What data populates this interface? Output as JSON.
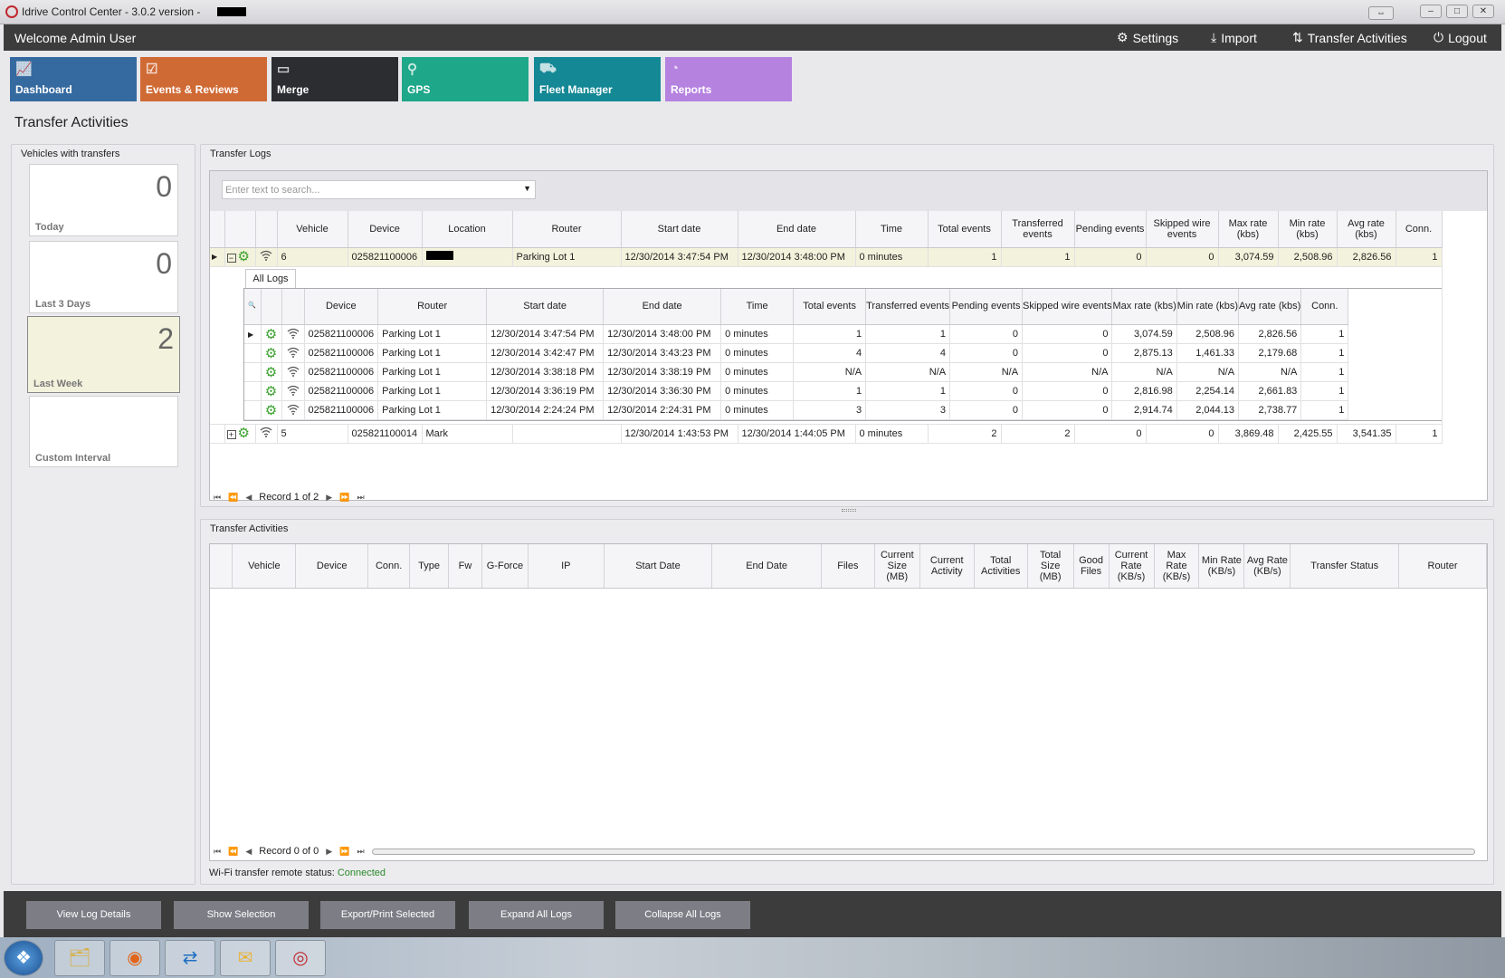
{
  "window": {
    "title": "Idrive Control Center - 3.0.2 version -",
    "buttons": [
      "⇔",
      "–",
      "□",
      "✕"
    ]
  },
  "header": {
    "welcome": "Welcome Admin User",
    "nav": [
      {
        "label": "Settings",
        "icon": "gears-icon"
      },
      {
        "label": "Import",
        "icon": "download-icon"
      },
      {
        "label": "Transfer Activities",
        "icon": "transfer-icon"
      },
      {
        "label": "Logout",
        "icon": "power-icon"
      }
    ]
  },
  "tiles": [
    {
      "label": "Dashboard",
      "color": "#356aa0",
      "icon": "chart-icon"
    },
    {
      "label": "Events & Reviews",
      "color": "#d06a35",
      "icon": "clipboard-icon"
    },
    {
      "label": "Merge",
      "color": "#2b2d31",
      "icon": "merge-icon"
    },
    {
      "label": "GPS",
      "color": "#1fa78a",
      "icon": "map-pin-icon"
    },
    {
      "label": "Fleet Manager",
      "color": "#148895",
      "icon": "cars-icon"
    },
    {
      "label": "Reports",
      "color": "#b582e0",
      "icon": "pie-chart-icon"
    }
  ],
  "page_title": "Transfer Activities",
  "vehicles_panel": {
    "title": "Vehicles with transfers",
    "cards": [
      {
        "label": "Today",
        "count": "0"
      },
      {
        "label": "Last 3 Days",
        "count": "0"
      },
      {
        "label": "Last Week",
        "count": "2",
        "selected": true
      },
      {
        "label": "Custom Interval",
        "count": ""
      }
    ]
  },
  "transfer_logs": {
    "title": "Transfer Logs",
    "search_placeholder": "Enter text to search...",
    "columns": [
      "",
      "",
      "",
      "Vehicle",
      "Device",
      "Location",
      "Router",
      "Start date",
      "End date",
      "Time",
      "Total events",
      "Transferred events",
      "Pending events",
      "Skipped wire events",
      "Max rate (kbs)",
      "Min rate (kbs)",
      "Avg rate (kbs)",
      "Conn."
    ],
    "rows": [
      {
        "expanded": true,
        "vehicle": "6",
        "device": "025821100006",
        "location": "",
        "router": "Parking Lot 1",
        "start": "12/30/2014 3:47:54 PM",
        "end": "12/30/2014 3:48:00 PM",
        "time": "0 minutes",
        "total": "1",
        "transferred": "1",
        "pending": "0",
        "skipped": "0",
        "max": "3,074.59",
        "min": "2,508.96",
        "avg": "2,826.56",
        "conn": "1",
        "detail": {
          "tab": "All Logs",
          "columns": [
            "",
            "",
            "",
            "Device",
            "Router",
            "Start date",
            "End date",
            "Time",
            "Total events",
            "Transferred events",
            "Pending events",
            "Skipped wire events",
            "Max rate (kbs)",
            "Min rate (kbs)",
            "Avg rate (kbs)",
            "Conn."
          ],
          "rows": [
            [
              "025821100006",
              "Parking Lot 1",
              "12/30/2014 3:47:54 PM",
              "12/30/2014 3:48:00 PM",
              "0 minutes",
              "1",
              "1",
              "0",
              "0",
              "3,074.59",
              "2,508.96",
              "2,826.56",
              "1"
            ],
            [
              "025821100006",
              "Parking Lot 1",
              "12/30/2014 3:42:47 PM",
              "12/30/2014 3:43:23 PM",
              "0 minutes",
              "4",
              "4",
              "0",
              "0",
              "2,875.13",
              "1,461.33",
              "2,179.68",
              "1"
            ],
            [
              "025821100006",
              "Parking Lot 1",
              "12/30/2014 3:38:18 PM",
              "12/30/2014 3:38:19 PM",
              "0 minutes",
              "N/A",
              "N/A",
              "N/A",
              "N/A",
              "N/A",
              "N/A",
              "N/A",
              "1"
            ],
            [
              "025821100006",
              "Parking Lot 1",
              "12/30/2014 3:36:19 PM",
              "12/30/2014 3:36:30 PM",
              "0 minutes",
              "1",
              "1",
              "0",
              "0",
              "2,816.98",
              "2,254.14",
              "2,661.83",
              "1"
            ],
            [
              "025821100006",
              "Parking Lot 1",
              "12/30/2014 2:24:24 PM",
              "12/30/2014 2:24:31 PM",
              "0 minutes",
              "3",
              "3",
              "0",
              "0",
              "2,914.74",
              "2,044.13",
              "2,738.77",
              "1"
            ]
          ]
        }
      },
      {
        "expanded": false,
        "vehicle": "5",
        "device": "025821100014",
        "location": "Mark",
        "router": "",
        "start": "12/30/2014 1:43:53 PM",
        "end": "12/30/2014 1:44:05 PM",
        "time": "0 minutes",
        "total": "2",
        "transferred": "2",
        "pending": "0",
        "skipped": "0",
        "max": "3,869.48",
        "min": "2,425.55",
        "avg": "3,541.35",
        "conn": "1"
      }
    ],
    "pager": "Record 1 of 2"
  },
  "transfer_activities": {
    "title": "Transfer Activities",
    "columns": [
      "",
      "Vehicle",
      "Device",
      "Conn.",
      "Type",
      "Fw",
      "G-Force",
      "IP",
      "Start Date",
      "End Date",
      "Files",
      "Current Size (MB)",
      "Current Activity",
      "Total Activities",
      "Total Size (MB)",
      "Good Files",
      "Current Rate (KB/s)",
      "Max Rate (KB/s)",
      "Min Rate (KB/s)",
      "Avg Rate (KB/s)",
      "Transfer Status",
      "Router"
    ],
    "pager": "Record 0 of 0"
  },
  "status": {
    "label": "Wi-Fi transfer remote status:",
    "value": "Connected",
    "value_color": "#2a8a2a"
  },
  "bottom_buttons": [
    "View Log Details",
    "Show Selection",
    "Export/Print Selected",
    "Expand All Logs",
    "Collapse All Logs"
  ],
  "taskbar": [
    {
      "icon": "windows-start-icon"
    },
    {
      "icon": "file-explorer-icon"
    },
    {
      "icon": "firefox-icon"
    },
    {
      "icon": "teamviewer-icon"
    },
    {
      "icon": "outlook-icon"
    },
    {
      "icon": "idrive-app-icon"
    }
  ]
}
